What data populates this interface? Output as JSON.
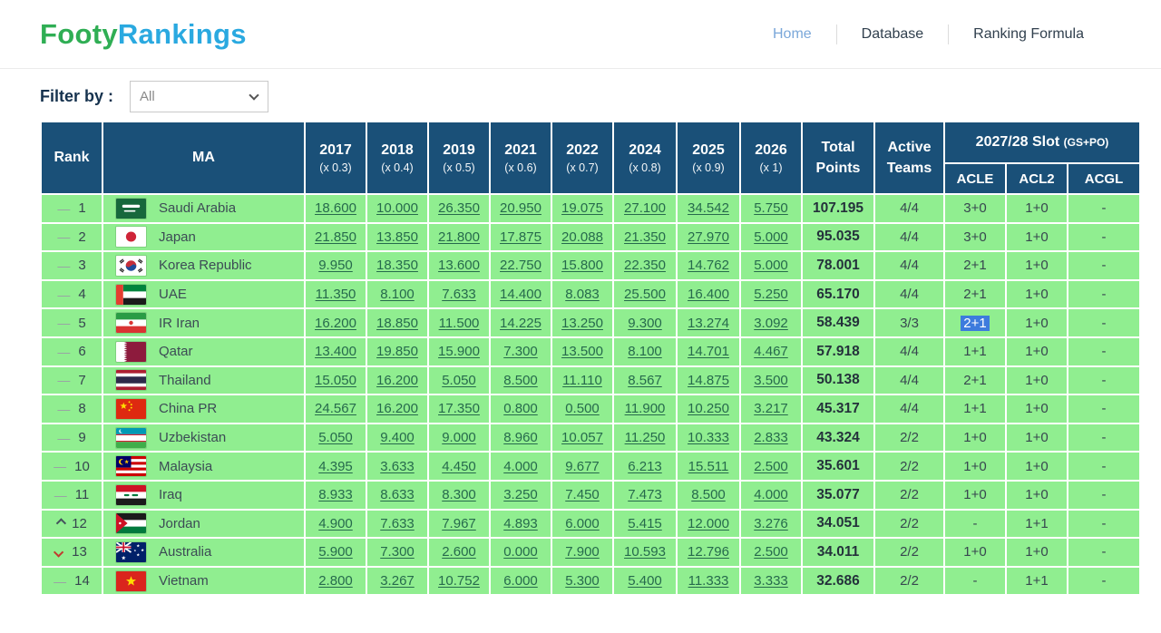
{
  "brand": {
    "part1": "Footy",
    "part2": "Rankings"
  },
  "nav": {
    "items": [
      {
        "label": "Home",
        "active": true
      },
      {
        "label": "Database",
        "active": false
      },
      {
        "label": "Ranking Formula",
        "active": false
      }
    ]
  },
  "filter": {
    "label": "Filter by :",
    "value": "All"
  },
  "colors": {
    "header_blue": "#1a5078",
    "row_green": "#90ee90",
    "link_green": "#266a4c",
    "logo_green": "#2fae54",
    "logo_blue": "#2aa9e0",
    "nav_active_blue": "#7aa7d9",
    "selection_blue": "#3d7bdd",
    "down_red": "#c23a2f"
  },
  "table": {
    "headers": {
      "rank": "Rank",
      "ma": "MA",
      "years": [
        {
          "year": "2017",
          "mult": "(x 0.3)"
        },
        {
          "year": "2018",
          "mult": "(x 0.4)"
        },
        {
          "year": "2019",
          "mult": "(x 0.5)"
        },
        {
          "year": "2021",
          "mult": "(x 0.6)"
        },
        {
          "year": "2022",
          "mult": "(x 0.7)"
        },
        {
          "year": "2024",
          "mult": "(x 0.8)"
        },
        {
          "year": "2025",
          "mult": "(x 0.9)"
        },
        {
          "year": "2026",
          "mult": "(x 1)"
        }
      ],
      "total": [
        "Total",
        "Points"
      ],
      "active": [
        "Active",
        "Teams"
      ],
      "slot_title": "2027/28 Slot",
      "slot_sub": "(GS+PO)",
      "slot_cols": [
        "ACLE",
        "ACL2",
        "ACGL"
      ]
    },
    "rows": [
      {
        "change": "same",
        "rank": "1",
        "flag": "sa",
        "country": "Saudi Arabia",
        "scores": [
          "18.600",
          "10.000",
          "26.350",
          "20.950",
          "19.075",
          "27.100",
          "34.542",
          "5.750"
        ],
        "total": "107.195",
        "active": "4/4",
        "acle": "3+0",
        "acl2": "1+0",
        "acgl": "-"
      },
      {
        "change": "same",
        "rank": "2",
        "flag": "jp",
        "country": "Japan",
        "scores": [
          "21.850",
          "13.850",
          "21.800",
          "17.875",
          "20.088",
          "21.350",
          "27.970",
          "5.000"
        ],
        "total": "95.035",
        "active": "4/4",
        "acle": "3+0",
        "acl2": "1+0",
        "acgl": "-"
      },
      {
        "change": "same",
        "rank": "3",
        "flag": "kr",
        "country": "Korea Republic",
        "scores": [
          "9.950",
          "18.350",
          "13.600",
          "22.750",
          "15.800",
          "22.350",
          "14.762",
          "5.000"
        ],
        "total": "78.001",
        "active": "4/4",
        "acle": "2+1",
        "acl2": "1+0",
        "acgl": "-"
      },
      {
        "change": "same",
        "rank": "4",
        "flag": "ae",
        "country": "UAE",
        "scores": [
          "11.350",
          "8.100",
          "7.633",
          "14.400",
          "8.083",
          "25.500",
          "16.400",
          "5.250"
        ],
        "total": "65.170",
        "active": "4/4",
        "acle": "2+1",
        "acl2": "1+0",
        "acgl": "-"
      },
      {
        "change": "same",
        "rank": "5",
        "flag": "ir",
        "country": "IR Iran",
        "scores": [
          "16.200",
          "18.850",
          "11.500",
          "14.225",
          "13.250",
          "9.300",
          "13.274",
          "3.092"
        ],
        "total": "58.439",
        "active": "3/3",
        "acle": "2+1",
        "acl2": "1+0",
        "acgl": "-",
        "acle_selected": true
      },
      {
        "change": "same",
        "rank": "6",
        "flag": "qa",
        "country": "Qatar",
        "scores": [
          "13.400",
          "19.850",
          "15.900",
          "7.300",
          "13.500",
          "8.100",
          "14.701",
          "4.467"
        ],
        "total": "57.918",
        "active": "4/4",
        "acle": "1+1",
        "acl2": "1+0",
        "acgl": "-"
      },
      {
        "change": "same",
        "rank": "7",
        "flag": "th",
        "country": "Thailand",
        "scores": [
          "15.050",
          "16.200",
          "5.050",
          "8.500",
          "11.110",
          "8.567",
          "14.875",
          "3.500"
        ],
        "total": "50.138",
        "active": "4/4",
        "acle": "2+1",
        "acl2": "1+0",
        "acgl": "-"
      },
      {
        "change": "same",
        "rank": "8",
        "flag": "cn",
        "country": "China PR",
        "scores": [
          "24.567",
          "16.200",
          "17.350",
          "0.800",
          "0.500",
          "11.900",
          "10.250",
          "3.217"
        ],
        "total": "45.317",
        "active": "4/4",
        "acle": "1+1",
        "acl2": "1+0",
        "acgl": "-"
      },
      {
        "change": "same",
        "rank": "9",
        "flag": "uz",
        "country": "Uzbekistan",
        "scores": [
          "5.050",
          "9.400",
          "9.000",
          "8.960",
          "10.057",
          "11.250",
          "10.333",
          "2.833"
        ],
        "total": "43.324",
        "active": "2/2",
        "acle": "1+0",
        "acl2": "1+0",
        "acgl": "-"
      },
      {
        "change": "same",
        "rank": "10",
        "flag": "my",
        "country": "Malaysia",
        "scores": [
          "4.395",
          "3.633",
          "4.450",
          "4.000",
          "9.677",
          "6.213",
          "15.511",
          "2.500"
        ],
        "total": "35.601",
        "active": "2/2",
        "acle": "1+0",
        "acl2": "1+0",
        "acgl": "-"
      },
      {
        "change": "same",
        "rank": "11",
        "flag": "iq",
        "country": "Iraq",
        "scores": [
          "8.933",
          "8.633",
          "8.300",
          "3.250",
          "7.450",
          "7.473",
          "8.500",
          "4.000"
        ],
        "total": "35.077",
        "active": "2/2",
        "acle": "1+0",
        "acl2": "1+0",
        "acgl": "-"
      },
      {
        "change": "up",
        "rank": "12",
        "flag": "jo",
        "country": "Jordan",
        "scores": [
          "4.900",
          "7.633",
          "7.967",
          "4.893",
          "6.000",
          "5.415",
          "12.000",
          "3.276"
        ],
        "total": "34.051",
        "active": "2/2",
        "acle": "-",
        "acl2": "1+1",
        "acgl": "-"
      },
      {
        "change": "down",
        "rank": "13",
        "flag": "au",
        "country": "Australia",
        "scores": [
          "5.900",
          "7.300",
          "2.600",
          "0.000",
          "7.900",
          "10.593",
          "12.796",
          "2.500"
        ],
        "total": "34.011",
        "active": "2/2",
        "acle": "1+0",
        "acl2": "1+0",
        "acgl": "-"
      },
      {
        "change": "same",
        "rank": "14",
        "flag": "vn",
        "country": "Vietnam",
        "scores": [
          "2.800",
          "3.267",
          "10.752",
          "6.000",
          "5.300",
          "5.400",
          "11.333",
          "3.333"
        ],
        "total": "32.686",
        "active": "2/2",
        "acle": "-",
        "acl2": "1+1",
        "acgl": "-"
      }
    ]
  }
}
